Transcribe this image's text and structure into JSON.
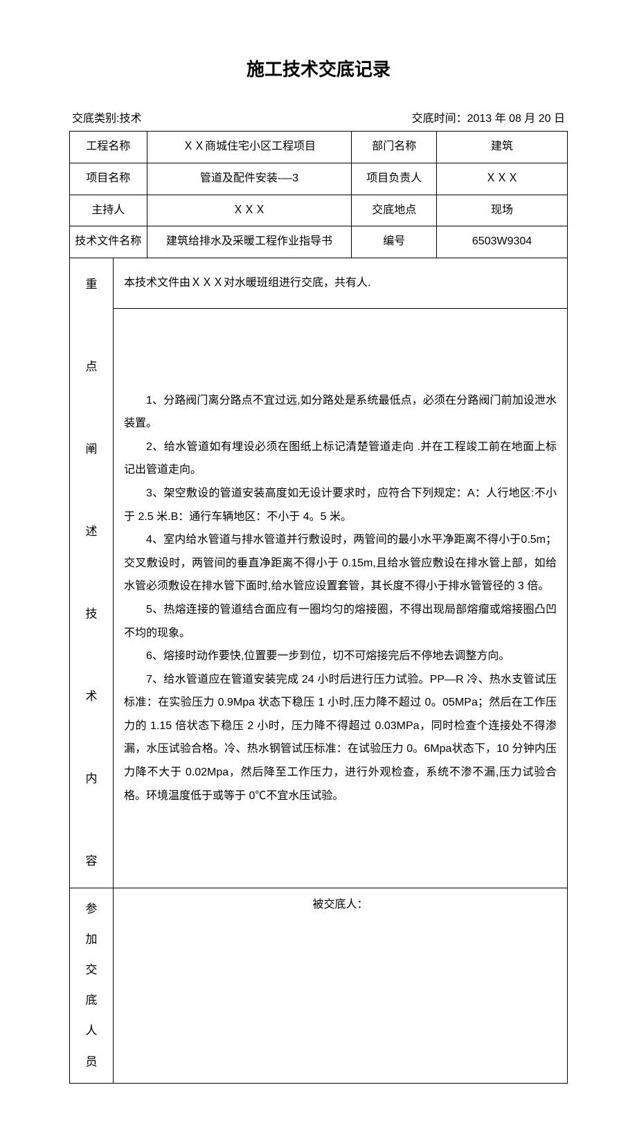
{
  "title": "施工技术交底记录",
  "meta": {
    "category_label": "交底类别:技术",
    "time_label": "交底时间：2013 年 08 月 20 日"
  },
  "header": {
    "row1": {
      "label1": "工程名称",
      "value1": "ＸＸ商城住宅小区工程项目",
      "label2": "部门名称",
      "value2": "建筑"
    },
    "row2": {
      "label1": "项目名称",
      "value1": "管道及配件安装-—3",
      "label2": "项目负责人",
      "value2": "ＸＸＸ"
    },
    "row3": {
      "label1": "主持人",
      "value1": "ＸＸＸ",
      "label2": "交底地点",
      "value2": "现场"
    },
    "row4": {
      "label1": "技术文件名称",
      "value1": "建筑给排水及采暖工程作业指导书",
      "label2": "编号",
      "value2": "6503W9304"
    }
  },
  "body": {
    "side_label": "重　点　阐　述　技　术　内　容",
    "intro": "本技术文件由ＸＸＸ对水暖班组进行交底，共有人.",
    "points": [
      "1、分路阀门离分路点不宜过远,如分路处是系统最低点，必须在分路阀门前加设泄水装置。",
      "2、给水管道如有埋设必须在图纸上标记清楚管道走向 .并在工程竣工前在地面上标记出管道走向。",
      "3、架空敷设的管道安装高度如无设计要求时，应符合下列规定：A：人行地区:不小于 2.5 米.B：通行车辆地区：不小于 4。5 米。",
      "4、室内给水管道与排水管道并行敷设时，两管间的最小水平净距离不得小于0.5m；交叉敷设时，两管间的垂直净距离不得小于 0.15m,且给水管应敷设在排水管上部，如给水管必须敷设在排水管下面时,给水管应设置套管，其长度不得小于排水管管径的 3 倍。",
      "5、热熔连接的管道结合面应有一圈均匀的熔接圈，不得出现局部熔瘤或熔接圈凸凹不均的现象。",
      "6、熔接时动作要快,位置要一步到位，切不可熔接完后不停地去调整方向。",
      "7、给水管道应在管道安装完成 24 小时后进行压力试验。PP—R 冷、热水支管试压标准：在实验压力 0.9Mpa 状态下稳压 1 小时,压力降不超过 0。05MPa；然后在工作压力的 1.15 倍状态下稳压 2 小时，压力降不得超过 0.03MPa，同时检查个连接处不得渗漏，水压试验合格。冷、热水钢管试压标准：在试验压力 0。6Mpa状态下，10 分钟内压力降不大于 0.02Mpa，然后降至工作压力，进行外观检查，系统不渗不漏,压力试验合格。环境温度低于或等于 0℃不宜水压试验。"
    ]
  },
  "footer": {
    "side_label": "参加交底人员",
    "recipient_label": "被交底人："
  }
}
